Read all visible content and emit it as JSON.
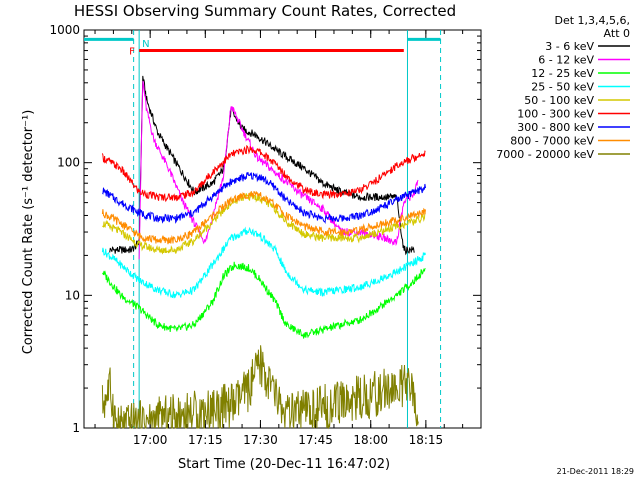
{
  "chart_data": {
    "type": "line",
    "title": "HESSI Observing Summary Count Rates, Corrected",
    "xlabel": "Start Time (20-Dec-11 16:47:02)",
    "ylabel": "Corrected Count Rate (s⁻¹ detector⁻¹)",
    "y_scale": "log",
    "ylim": [
      1,
      1000
    ],
    "x_ticks": [
      {
        "t": 13,
        "label": "17:00"
      },
      {
        "t": 28,
        "label": "17:15"
      },
      {
        "t": 43,
        "label": "17:30"
      },
      {
        "t": 58,
        "label": "17:45"
      },
      {
        "t": 73,
        "label": "18:00"
      },
      {
        "t": 88,
        "label": "18:15"
      }
    ],
    "xlim": [
      -5,
      103
    ],
    "y_ticks": [
      1,
      10,
      100,
      1000
    ],
    "y_tick_labels": [
      "1",
      "10",
      "100",
      "1000"
    ],
    "legend_header": [
      "Det 1,3,4,5,6,",
      "Att 0"
    ],
    "stamp": "21-Dec-2011 18:29",
    "flags": [
      {
        "label": "F",
        "color": "#ff0000",
        "start": 10,
        "end": 82,
        "value": 700
      },
      {
        "label": "N",
        "color": "#00c8c8",
        "start": 10,
        "end": 10,
        "value": 800
      }
    ],
    "night_marks": [
      {
        "t": 8.5,
        "style": "dashed"
      },
      {
        "t": 10,
        "style": "solid"
      },
      {
        "t": 83,
        "style": "solid"
      },
      {
        "t": 92,
        "style": "dashed"
      }
    ],
    "night_bars": [
      {
        "start": -5,
        "end": 8.5,
        "value": 850
      },
      {
        "start": 83,
        "end": 92,
        "value": 850
      }
    ],
    "series": [
      {
        "name": "3 - 6 keV",
        "color": "#000000",
        "points": [
          [
            2,
            22
          ],
          [
            8,
            22
          ],
          [
            10,
            25
          ],
          [
            11,
            450
          ],
          [
            12,
            300
          ],
          [
            15,
            170
          ],
          [
            20,
            100
          ],
          [
            25,
            60
          ],
          [
            30,
            70
          ],
          [
            33,
            90
          ],
          [
            35,
            250
          ],
          [
            38,
            180
          ],
          [
            42,
            160
          ],
          [
            48,
            120
          ],
          [
            55,
            90
          ],
          [
            60,
            70
          ],
          [
            65,
            60
          ],
          [
            70,
            55
          ],
          [
            75,
            55
          ],
          [
            80,
            55
          ],
          [
            82,
            22
          ],
          [
            85,
            22
          ]
        ]
      },
      {
        "name": "6 - 12 keV",
        "color": "#ff00ff",
        "points": [
          [
            10,
            20
          ],
          [
            11,
            420
          ],
          [
            12,
            250
          ],
          [
            14,
            150
          ],
          [
            18,
            90
          ],
          [
            22,
            50
          ],
          [
            25,
            35
          ],
          [
            28,
            25
          ],
          [
            30,
            40
          ],
          [
            33,
            80
          ],
          [
            35,
            270
          ],
          [
            38,
            180
          ],
          [
            42,
            110
          ],
          [
            48,
            80
          ],
          [
            55,
            55
          ],
          [
            60,
            45
          ],
          [
            65,
            30
          ],
          [
            70,
            30
          ],
          [
            75,
            28
          ],
          [
            80,
            25
          ],
          [
            82,
            50
          ],
          [
            85,
            60
          ],
          [
            86,
            75
          ]
        ]
      },
      {
        "name": "12 - 25 keV",
        "color": "#00ff00",
        "points": [
          [
            0,
            15
          ],
          [
            5,
            10
          ],
          [
            10,
            8
          ],
          [
            15,
            6
          ],
          [
            20,
            5.5
          ],
          [
            25,
            6
          ],
          [
            30,
            9
          ],
          [
            33,
            14
          ],
          [
            36,
            17
          ],
          [
            40,
            16
          ],
          [
            43,
            13
          ],
          [
            47,
            9
          ],
          [
            50,
            6
          ],
          [
            55,
            5
          ],
          [
            60,
            5.5
          ],
          [
            65,
            6
          ],
          [
            70,
            6.5
          ],
          [
            75,
            8
          ],
          [
            80,
            10
          ],
          [
            85,
            13
          ],
          [
            88,
            16
          ]
        ]
      },
      {
        "name": "25 - 50 keV",
        "color": "#00ffff",
        "points": [
          [
            0,
            22
          ],
          [
            5,
            17
          ],
          [
            10,
            13
          ],
          [
            15,
            11
          ],
          [
            20,
            10
          ],
          [
            25,
            11
          ],
          [
            30,
            17
          ],
          [
            35,
            27
          ],
          [
            40,
            31
          ],
          [
            43,
            28
          ],
          [
            47,
            22
          ],
          [
            50,
            15
          ],
          [
            55,
            11
          ],
          [
            60,
            10.5
          ],
          [
            65,
            11
          ],
          [
            70,
            11.5
          ],
          [
            75,
            13
          ],
          [
            80,
            15
          ],
          [
            85,
            18
          ],
          [
            88,
            20
          ]
        ]
      },
      {
        "name": "50 - 100 keV",
        "color": "#d4c800",
        "points": [
          [
            0,
            35
          ],
          [
            5,
            30
          ],
          [
            10,
            24
          ],
          [
            15,
            22
          ],
          [
            20,
            22
          ],
          [
            25,
            26
          ],
          [
            30,
            36
          ],
          [
            35,
            50
          ],
          [
            40,
            56
          ],
          [
            43,
            54
          ],
          [
            47,
            45
          ],
          [
            50,
            36
          ],
          [
            55,
            29
          ],
          [
            60,
            27
          ],
          [
            65,
            27
          ],
          [
            70,
            27
          ],
          [
            75,
            30
          ],
          [
            80,
            33
          ],
          [
            85,
            36
          ],
          [
            88,
            40
          ]
        ]
      },
      {
        "name": "100 - 300 keV",
        "color": "#ff0000",
        "points": [
          [
            0,
            110
          ],
          [
            5,
            90
          ],
          [
            10,
            60
          ],
          [
            15,
            55
          ],
          [
            20,
            55
          ],
          [
            25,
            60
          ],
          [
            30,
            85
          ],
          [
            35,
            115
          ],
          [
            40,
            127
          ],
          [
            43,
            120
          ],
          [
            47,
            98
          ],
          [
            50,
            80
          ],
          [
            55,
            62
          ],
          [
            60,
            57
          ],
          [
            65,
            58
          ],
          [
            70,
            62
          ],
          [
            75,
            75
          ],
          [
            80,
            95
          ],
          [
            85,
            110
          ],
          [
            88,
            120
          ]
        ]
      },
      {
        "name": "300 - 800 keV",
        "color": "#0000ff",
        "points": [
          [
            0,
            62
          ],
          [
            5,
            50
          ],
          [
            10,
            42
          ],
          [
            15,
            38
          ],
          [
            20,
            38
          ],
          [
            25,
            42
          ],
          [
            30,
            56
          ],
          [
            35,
            72
          ],
          [
            40,
            80
          ],
          [
            43,
            78
          ],
          [
            47,
            65
          ],
          [
            50,
            52
          ],
          [
            55,
            42
          ],
          [
            60,
            38
          ],
          [
            65,
            38
          ],
          [
            70,
            40
          ],
          [
            75,
            45
          ],
          [
            80,
            52
          ],
          [
            85,
            60
          ],
          [
            88,
            65
          ]
        ]
      },
      {
        "name": "800 - 7000 keV",
        "color": "#ff8c00",
        "points": [
          [
            0,
            42
          ],
          [
            5,
            35
          ],
          [
            10,
            28
          ],
          [
            15,
            26
          ],
          [
            20,
            26
          ],
          [
            25,
            30
          ],
          [
            30,
            40
          ],
          [
            35,
            52
          ],
          [
            40,
            58
          ],
          [
            43,
            56
          ],
          [
            47,
            48
          ],
          [
            50,
            40
          ],
          [
            55,
            33
          ],
          [
            60,
            30
          ],
          [
            65,
            30
          ],
          [
            70,
            31
          ],
          [
            75,
            34
          ],
          [
            80,
            37
          ],
          [
            85,
            40
          ],
          [
            88,
            44
          ]
        ]
      },
      {
        "name": "7000 - 20000 keV",
        "color": "#808000",
        "points": [
          [
            0,
            1.5
          ],
          [
            2,
            2
          ],
          [
            4,
            1
          ],
          [
            36,
            1.5
          ],
          [
            40,
            2
          ],
          [
            43,
            3
          ],
          [
            46,
            2
          ],
          [
            50,
            1.2
          ],
          [
            80,
            2
          ],
          [
            84,
            2
          ],
          [
            86,
            1
          ]
        ]
      }
    ]
  }
}
